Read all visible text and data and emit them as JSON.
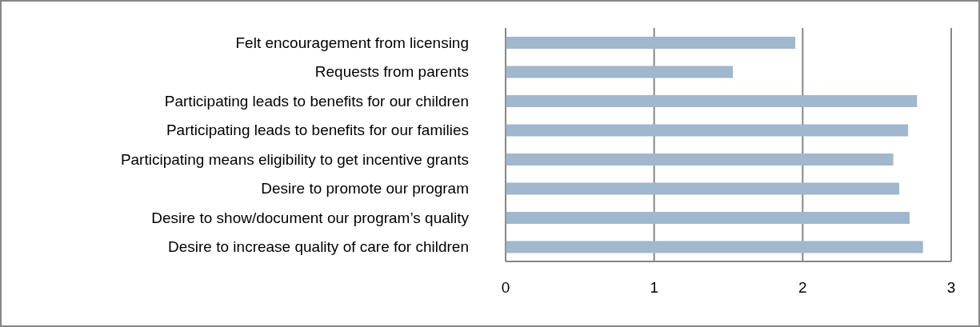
{
  "chart_data": {
    "type": "bar",
    "orientation": "horizontal",
    "categories": [
      "Felt encouragement from licensing",
      "Requests from parents",
      "Participating leads to benefits for our children",
      "Participating leads to benefits for our families",
      "Participating means eligibility to get incentive grants",
      "Desire to promote our program",
      "Desire to show/document our program’s quality",
      "Desire to increase quality of care for children"
    ],
    "values": [
      1.95,
      1.53,
      2.77,
      2.71,
      2.61,
      2.65,
      2.72,
      2.81
    ],
    "color": "#a0b7cd",
    "xlim": [
      0,
      3
    ],
    "xticks": [
      0,
      1,
      2,
      3
    ],
    "grid": "x"
  }
}
